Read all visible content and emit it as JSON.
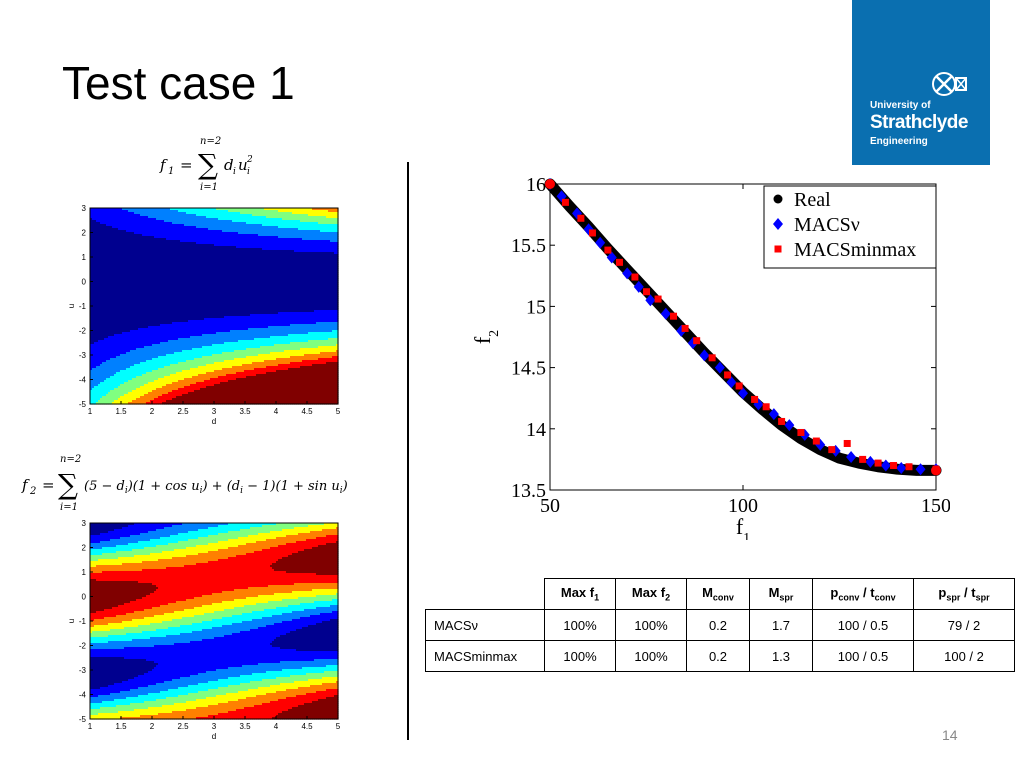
{
  "slide": {
    "title": "Test case 1",
    "page_number": "14"
  },
  "logo": {
    "line1": "University of",
    "line2": "Strathclyde",
    "line3": "Engineering",
    "color": "#0a6fb0"
  },
  "equations": {
    "f1": "f₁ = ∑_{i=1}^{n=2} d_i u_i²",
    "f2": "f₂ = ∑_{i=1}^{n=2} (5 − d_i)(1 + cos u_i) + (d_i − 1)(1 + sin u_i)"
  },
  "table": {
    "headers": [
      "",
      "Max f1",
      "Max f2",
      "Mconv",
      "Mspr",
      "pconv / tconv",
      "pspr / tspr"
    ],
    "rows": [
      [
        "MACSν",
        "100%",
        "100%",
        "0.2",
        "1.7",
        "100 / 0.5",
        "79 / 2"
      ],
      [
        "MACSminmax",
        "100%",
        "100%",
        "0.2",
        "1.3",
        "100 / 0.5",
        "100 / 2"
      ]
    ]
  },
  "chart_data": [
    {
      "type": "heatmap",
      "title": "",
      "xlabel": "d",
      "ylabel": "u",
      "xlim": [
        1,
        5
      ],
      "ylim": [
        -5,
        3
      ],
      "xticks": [
        "1",
        "1.5",
        "2",
        "2.5",
        "3",
        "3.5",
        "4",
        "4.5",
        "5"
      ],
      "yticks": [
        "3",
        "2",
        "1",
        "0",
        "-1",
        "-2",
        "-3",
        "-4",
        "-5"
      ],
      "function": "f1 = d*u^2",
      "colormap": [
        "#00008f",
        "#0000ff",
        "#0080ff",
        "#00ffff",
        "#80ff80",
        "#ffff00",
        "#ff8000",
        "#ff0000",
        "#800000"
      ]
    },
    {
      "type": "heatmap",
      "title": "",
      "xlabel": "d",
      "ylabel": "u",
      "xlim": [
        1,
        5
      ],
      "ylim": [
        -5,
        3
      ],
      "xticks": [
        "1",
        "1.5",
        "2",
        "2.5",
        "3",
        "3.5",
        "4",
        "4.5",
        "5"
      ],
      "yticks": [
        "3",
        "2",
        "1",
        "0",
        "-1",
        "-2",
        "-3",
        "-4",
        "-5"
      ],
      "function": "f2 = (5-d)(1+cos u)+(d-1)(1+sin u)",
      "colormap": [
        "#00008f",
        "#0000ff",
        "#0080ff",
        "#00ffff",
        "#80ff80",
        "#ffff00",
        "#ff8000",
        "#ff0000",
        "#800000"
      ]
    },
    {
      "type": "scatter",
      "title": "",
      "xlabel": "f1",
      "ylabel": "f2",
      "xlim": [
        50,
        150
      ],
      "ylim": [
        13.5,
        16
      ],
      "xticks": [
        "50",
        "100",
        "150"
      ],
      "yticks": [
        "16",
        "15.5",
        "15",
        "14.5",
        "14",
        "13.5"
      ],
      "legend_position": "top-right",
      "series": [
        {
          "name": "Real",
          "marker": "circle",
          "color": "#000000",
          "x": [
            50,
            55,
            60,
            65,
            70,
            75,
            80,
            85,
            90,
            95,
            100,
            105,
            110,
            115,
            120,
            125,
            130,
            135,
            140,
            145,
            150
          ],
          "y": [
            16.0,
            15.82,
            15.65,
            15.47,
            15.3,
            15.13,
            14.96,
            14.79,
            14.62,
            14.46,
            14.3,
            14.16,
            14.03,
            13.92,
            13.83,
            13.76,
            13.72,
            13.69,
            13.67,
            13.66,
            13.66
          ]
        },
        {
          "name": "MACSν",
          "marker": "diamond",
          "color": "#0000ff",
          "x": [
            50,
            53,
            57,
            60,
            63,
            66,
            70,
            73,
            76,
            80,
            84,
            87,
            90,
            94,
            97,
            100,
            104,
            108,
            112,
            116,
            120,
            124,
            128,
            133,
            137,
            141,
            146,
            150
          ],
          "y": [
            16.0,
            15.9,
            15.76,
            15.63,
            15.52,
            15.4,
            15.27,
            15.16,
            15.05,
            14.94,
            14.8,
            14.7,
            14.6,
            14.5,
            14.38,
            14.29,
            14.2,
            14.12,
            14.03,
            13.95,
            13.87,
            13.82,
            13.77,
            13.73,
            13.7,
            13.68,
            13.67,
            13.67
          ]
        },
        {
          "name": "MACSminmax",
          "marker": "square",
          "color": "#ff0000",
          "x": [
            50,
            54,
            58,
            61,
            65,
            68,
            72,
            75,
            78,
            82,
            85,
            88,
            92,
            96,
            99,
            103,
            106,
            110,
            115,
            119,
            123,
            127,
            131,
            135,
            139,
            143,
            150
          ],
          "y": [
            16.0,
            15.85,
            15.72,
            15.6,
            15.46,
            15.36,
            15.24,
            15.12,
            15.06,
            14.92,
            14.82,
            14.72,
            14.58,
            14.44,
            14.35,
            14.24,
            14.18,
            14.06,
            13.97,
            13.9,
            13.83,
            13.88,
            13.75,
            13.72,
            13.7,
            13.69,
            13.67
          ]
        }
      ]
    }
  ]
}
